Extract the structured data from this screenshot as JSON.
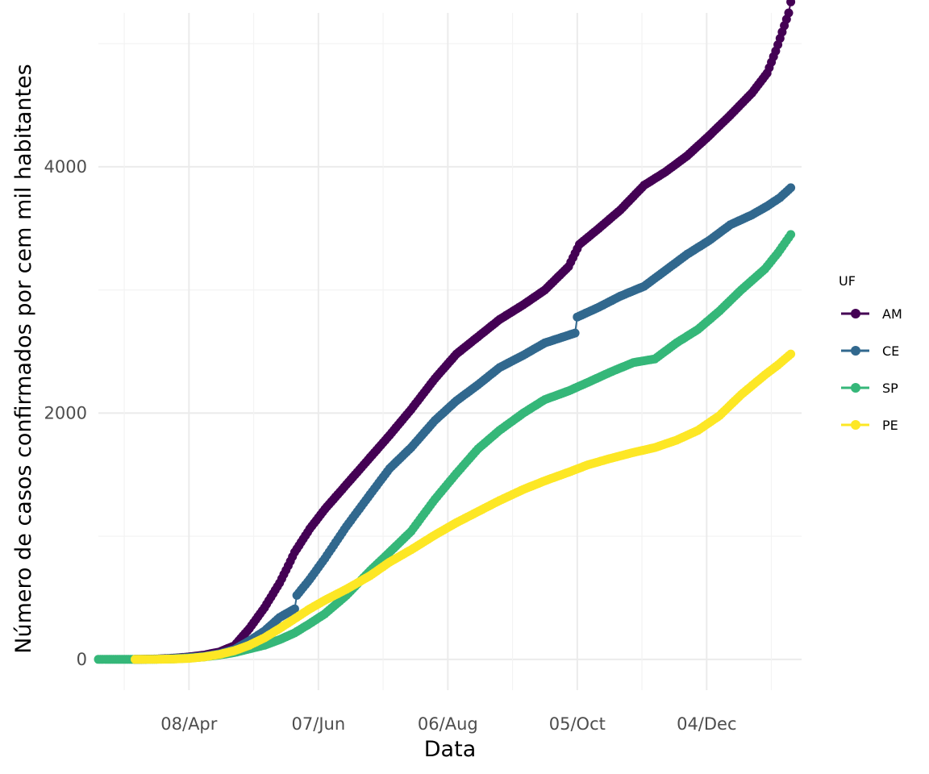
{
  "chart_data": {
    "type": "line",
    "xlabel": "Data",
    "ylabel": "Número de casos confirmados por cem mil habitantes",
    "x_type": "date",
    "xlim": [
      "2020-02-26",
      "2021-01-17"
    ],
    "ylim": [
      -250,
      5250
    ],
    "x_ticks": [
      {
        "date": "2020-04-08",
        "label": "08/Apr"
      },
      {
        "date": "2020-06-07",
        "label": "07/Jun"
      },
      {
        "date": "2020-08-06",
        "label": "06/Aug"
      },
      {
        "date": "2020-10-05",
        "label": "05/Oct"
      },
      {
        "date": "2020-12-04",
        "label": "04/Dec"
      }
    ],
    "y_ticks": [
      {
        "value": 0,
        "label": "0"
      },
      {
        "value": 2000,
        "label": "2000"
      },
      {
        "value": 4000,
        "label": "4000"
      }
    ],
    "grid": true,
    "legend": {
      "title": "UF",
      "position": "right"
    },
    "series": [
      {
        "name": "AM",
        "color": "#440154",
        "points": [
          [
            "2020-03-14",
            0
          ],
          [
            "2020-03-24",
            3
          ],
          [
            "2020-04-01",
            10
          ],
          [
            "2020-04-08",
            20
          ],
          [
            "2020-04-15",
            35
          ],
          [
            "2020-04-22",
            60
          ],
          [
            "2020-04-29",
            110
          ],
          [
            "2020-05-06",
            250
          ],
          [
            "2020-05-13",
            420
          ],
          [
            "2020-05-20",
            620
          ],
          [
            "2020-05-24",
            760
          ],
          [
            "2020-05-27",
            870
          ],
          [
            "2020-06-03",
            1060
          ],
          [
            "2020-06-10",
            1220
          ],
          [
            "2020-06-20",
            1420
          ],
          [
            "2020-07-01",
            1640
          ],
          [
            "2020-07-10",
            1820
          ],
          [
            "2020-07-20",
            2030
          ],
          [
            "2020-07-31",
            2280
          ],
          [
            "2020-08-10",
            2480
          ],
          [
            "2020-08-20",
            2620
          ],
          [
            "2020-08-30",
            2760
          ],
          [
            "2020-09-10",
            2880
          ],
          [
            "2020-09-20",
            3000
          ],
          [
            "2020-10-01",
            3190
          ],
          [
            "2020-10-06",
            3370
          ],
          [
            "2020-10-15",
            3500
          ],
          [
            "2020-10-25",
            3650
          ],
          [
            "2020-11-05",
            3850
          ],
          [
            "2020-11-15",
            3960
          ],
          [
            "2020-11-25",
            4090
          ],
          [
            "2020-12-05",
            4250
          ],
          [
            "2020-12-15",
            4420
          ],
          [
            "2020-12-25",
            4600
          ],
          [
            "2021-01-01",
            4760
          ],
          [
            "2021-01-05",
            4940
          ],
          [
            "2021-01-11",
            5250
          ],
          [
            "2021-01-12",
            5340
          ]
        ]
      },
      {
        "name": "CE",
        "color": "#31688e",
        "points": [
          [
            "2020-03-14",
            0
          ],
          [
            "2020-03-24",
            2
          ],
          [
            "2020-04-01",
            8
          ],
          [
            "2020-04-08",
            15
          ],
          [
            "2020-04-15",
            25
          ],
          [
            "2020-04-22",
            45
          ],
          [
            "2020-04-29",
            80
          ],
          [
            "2020-05-06",
            150
          ],
          [
            "2020-05-13",
            230
          ],
          [
            "2020-05-20",
            340
          ],
          [
            "2020-05-27",
            410
          ],
          [
            "2020-05-28",
            520
          ],
          [
            "2020-06-03",
            650
          ],
          [
            "2020-06-10",
            820
          ],
          [
            "2020-06-20",
            1080
          ],
          [
            "2020-07-01",
            1340
          ],
          [
            "2020-07-10",
            1550
          ],
          [
            "2020-07-20",
            1720
          ],
          [
            "2020-07-31",
            1940
          ],
          [
            "2020-08-10",
            2100
          ],
          [
            "2020-08-20",
            2230
          ],
          [
            "2020-08-30",
            2370
          ],
          [
            "2020-09-10",
            2470
          ],
          [
            "2020-09-20",
            2570
          ],
          [
            "2020-10-04",
            2650
          ],
          [
            "2020-10-05",
            2780
          ],
          [
            "2020-10-15",
            2860
          ],
          [
            "2020-10-25",
            2950
          ],
          [
            "2020-11-05",
            3030
          ],
          [
            "2020-11-15",
            3160
          ],
          [
            "2020-11-25",
            3290
          ],
          [
            "2020-12-05",
            3400
          ],
          [
            "2020-12-15",
            3530
          ],
          [
            "2020-12-25",
            3610
          ],
          [
            "2021-01-01",
            3680
          ],
          [
            "2021-01-07",
            3750
          ],
          [
            "2021-01-12",
            3830
          ]
        ]
      },
      {
        "name": "SP",
        "color": "#35b779",
        "points": [
          [
            "2020-02-26",
            0
          ],
          [
            "2020-03-10",
            0
          ],
          [
            "2020-03-24",
            1
          ],
          [
            "2020-04-01",
            4
          ],
          [
            "2020-04-08",
            10
          ],
          [
            "2020-04-15",
            20
          ],
          [
            "2020-04-22",
            35
          ],
          [
            "2020-04-29",
            55
          ],
          [
            "2020-05-06",
            85
          ],
          [
            "2020-05-13",
            115
          ],
          [
            "2020-05-20",
            160
          ],
          [
            "2020-05-27",
            215
          ],
          [
            "2020-06-03",
            290
          ],
          [
            "2020-06-10",
            370
          ],
          [
            "2020-06-20",
            520
          ],
          [
            "2020-07-01",
            720
          ],
          [
            "2020-07-10",
            870
          ],
          [
            "2020-07-20",
            1040
          ],
          [
            "2020-07-31",
            1300
          ],
          [
            "2020-08-10",
            1510
          ],
          [
            "2020-08-20",
            1710
          ],
          [
            "2020-08-30",
            1860
          ],
          [
            "2020-09-10",
            2000
          ],
          [
            "2020-09-20",
            2110
          ],
          [
            "2020-10-01",
            2180
          ],
          [
            "2020-10-10",
            2250
          ],
          [
            "2020-10-20",
            2330
          ],
          [
            "2020-10-31",
            2410
          ],
          [
            "2020-11-10",
            2440
          ],
          [
            "2020-11-20",
            2570
          ],
          [
            "2020-11-30",
            2680
          ],
          [
            "2020-12-10",
            2830
          ],
          [
            "2020-12-20",
            3000
          ],
          [
            "2020-12-31",
            3170
          ],
          [
            "2021-01-06",
            3300
          ],
          [
            "2021-01-12",
            3450
          ]
        ]
      },
      {
        "name": "PE",
        "color": "#fde725",
        "points": [
          [
            "2020-03-14",
            0
          ],
          [
            "2020-03-24",
            1
          ],
          [
            "2020-04-01",
            3
          ],
          [
            "2020-04-08",
            8
          ],
          [
            "2020-04-15",
            20
          ],
          [
            "2020-04-22",
            40
          ],
          [
            "2020-04-29",
            70
          ],
          [
            "2020-05-06",
            115
          ],
          [
            "2020-05-13",
            175
          ],
          [
            "2020-05-20",
            250
          ],
          [
            "2020-05-27",
            330
          ],
          [
            "2020-06-03",
            410
          ],
          [
            "2020-06-10",
            480
          ],
          [
            "2020-06-20",
            570
          ],
          [
            "2020-07-01",
            680
          ],
          [
            "2020-07-10",
            790
          ],
          [
            "2020-07-20",
            890
          ],
          [
            "2020-07-31",
            1010
          ],
          [
            "2020-08-10",
            1110
          ],
          [
            "2020-08-20",
            1200
          ],
          [
            "2020-08-30",
            1290
          ],
          [
            "2020-09-10",
            1380
          ],
          [
            "2020-09-20",
            1450
          ],
          [
            "2020-10-01",
            1520
          ],
          [
            "2020-10-10",
            1580
          ],
          [
            "2020-10-20",
            1630
          ],
          [
            "2020-10-31",
            1680
          ],
          [
            "2020-11-10",
            1720
          ],
          [
            "2020-11-20",
            1780
          ],
          [
            "2020-11-30",
            1860
          ],
          [
            "2020-12-10",
            1980
          ],
          [
            "2020-12-20",
            2150
          ],
          [
            "2020-12-31",
            2310
          ],
          [
            "2021-01-06",
            2390
          ],
          [
            "2021-01-12",
            2480
          ]
        ]
      }
    ]
  }
}
